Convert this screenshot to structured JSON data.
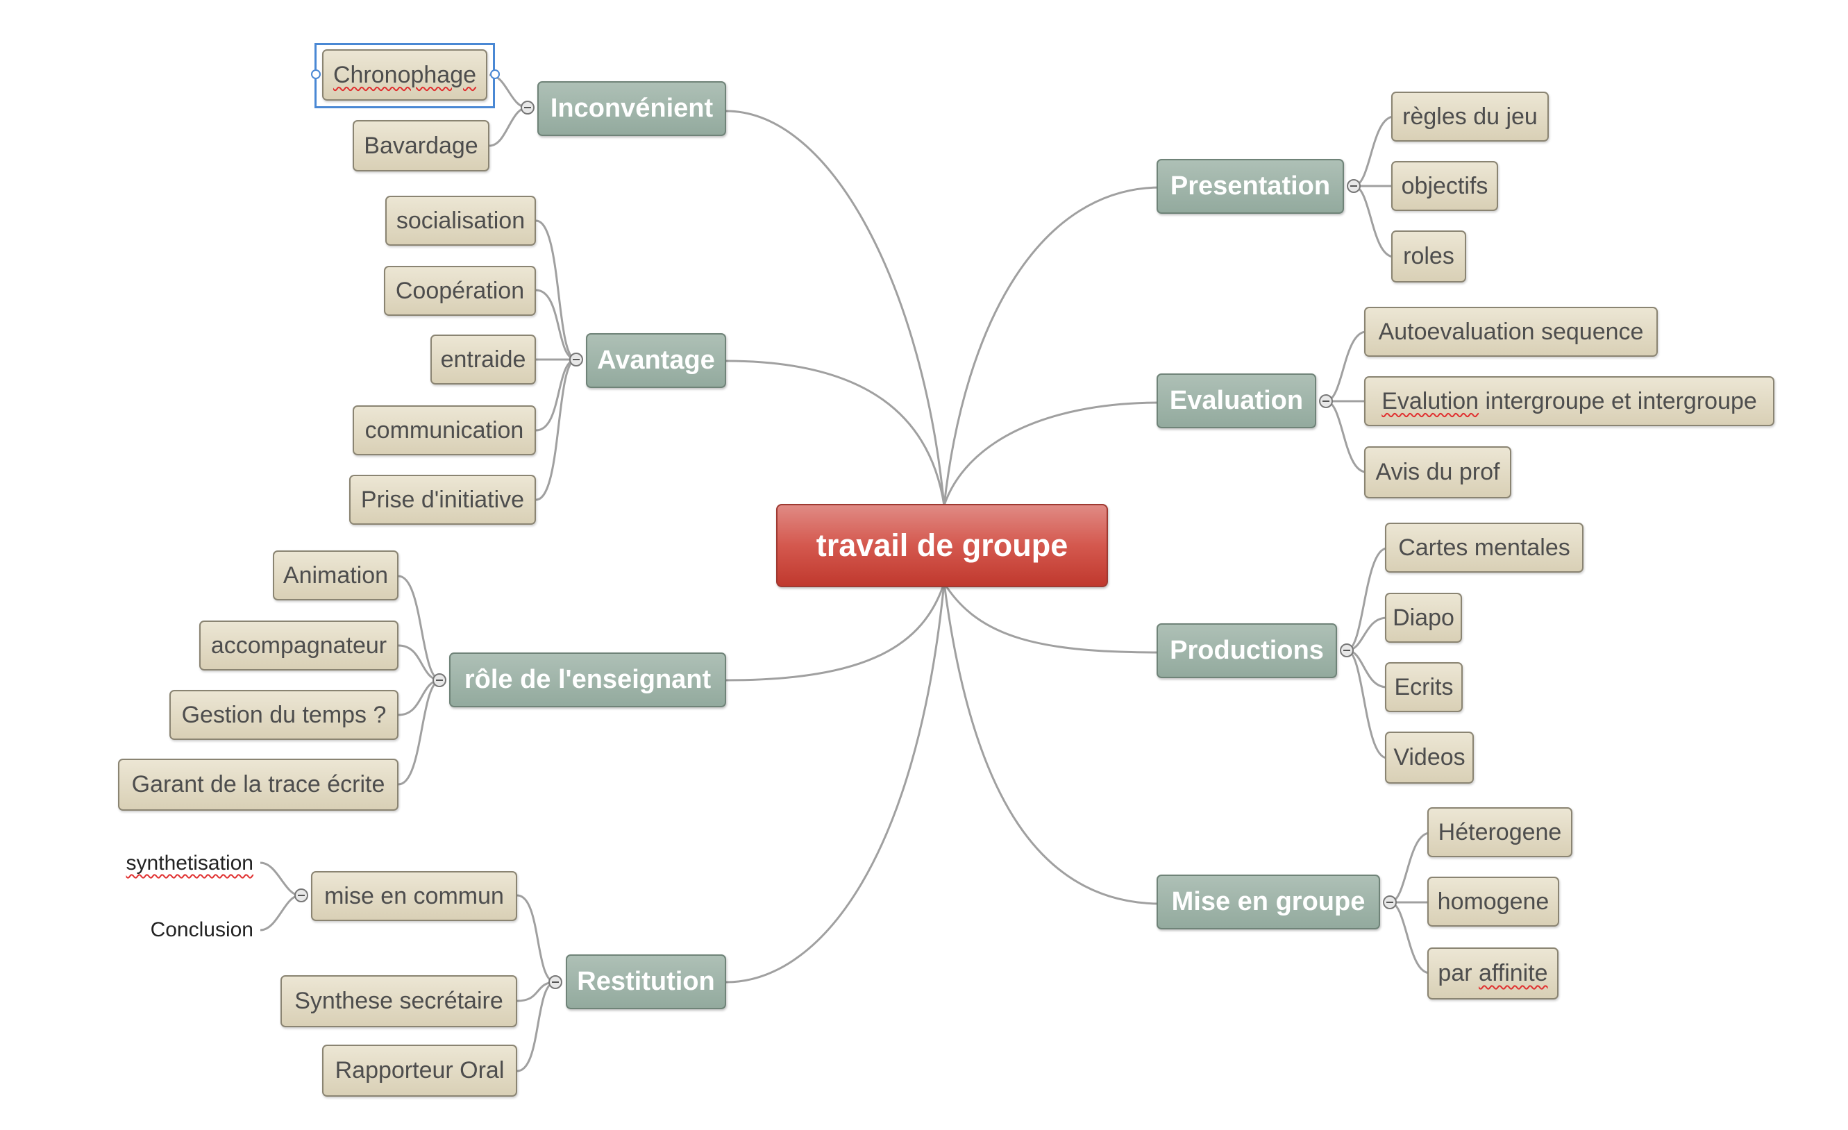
{
  "map": {
    "central": "travail de groupe",
    "inconvenient": {
      "label": "Inconvénient",
      "items": [
        "Chronophage",
        "Bavardage"
      ]
    },
    "avantage": {
      "label": "Avantage",
      "items": [
        "socialisation",
        "Coopération",
        "entraide",
        "communication",
        "Prise d'initiative"
      ]
    },
    "role": {
      "label": "rôle de l'enseignant",
      "items": [
        "Animation",
        "accompagnateur",
        "Gestion du temps ?",
        "Garant de la trace écrite"
      ]
    },
    "restitution": {
      "label": "Restitution",
      "mise_en_commun": {
        "label": "mise en commun",
        "items": [
          "synthetisation",
          "Conclusion"
        ]
      },
      "items": [
        "Synthese secrétaire",
        "Rapporteur Oral"
      ]
    },
    "presentation": {
      "label": "Presentation",
      "items": [
        "règles du jeu",
        "objectifs",
        "roles"
      ]
    },
    "evaluation": {
      "label": "Evaluation",
      "items": [
        "Autoevaluation sequence",
        "intergroupe et intergroupe",
        "Avis du prof"
      ],
      "evalution_word": "Evalution"
    },
    "productions": {
      "label": "Productions",
      "items": [
        "Cartes mentales",
        "Diapo",
        "Ecrits",
        "Videos"
      ]
    },
    "mise_en_groupe": {
      "label": "Mise en groupe",
      "items": [
        "Héterogene",
        "homogene",
        "par "
      ],
      "affinite_word": "affinite"
    }
  },
  "colors": {
    "central": "#cf4b42",
    "main": "#9fb3a8",
    "sub": "#e3dcc6",
    "link": "#a0a0a0",
    "selection": "#4a88d4"
  }
}
